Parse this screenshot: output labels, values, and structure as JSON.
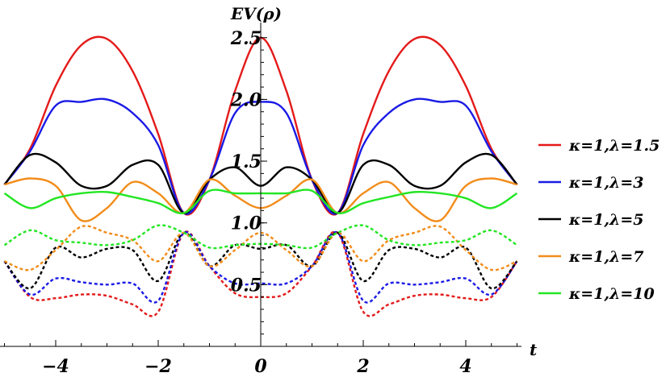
{
  "chart_data": {
    "type": "line",
    "xlabel": "t",
    "ylabel": "EV(ρ)",
    "xlim": [
      -5.2,
      5.2
    ],
    "ylim": [
      0,
      2.55
    ],
    "x_ticks": [
      {
        "value": -4,
        "label": "−4"
      },
      {
        "value": -2,
        "label": "−2"
      },
      {
        "value": 0,
        "label": "0"
      },
      {
        "value": 2,
        "label": "2"
      },
      {
        "value": 4,
        "label": "4"
      }
    ],
    "y_ticks": [
      {
        "value": 0.5,
        "label": "0.5"
      },
      {
        "value": 1.0,
        "label": "1.0"
      },
      {
        "value": 1.5,
        "label": "1.5"
      },
      {
        "value": 2.0,
        "label": "2.0"
      },
      {
        "value": 2.5,
        "label": "2.5"
      }
    ],
    "x": [
      -5.0,
      -4.5,
      -4.0,
      -3.5,
      -3.0,
      -2.5,
      -2.0,
      -1.5,
      -1.0,
      -0.5,
      0.0,
      0.5,
      1.0,
      1.5,
      2.0,
      2.5,
      3.0,
      3.5,
      4.0,
      4.5,
      5.0
    ],
    "series": [
      {
        "name": "κ=1,λ=1.5",
        "color": "#e41a1a",
        "solid": [
          1.31,
          1.6,
          2.11,
          2.44,
          2.49,
          2.23,
          1.72,
          1.08,
          1.35,
          2.07,
          2.5,
          2.07,
          1.35,
          1.08,
          1.72,
          2.23,
          2.49,
          2.44,
          2.11,
          1.6,
          1.31
        ],
        "dashed": [
          0.69,
          0.4,
          0.39,
          0.42,
          0.41,
          0.34,
          0.28,
          0.92,
          0.65,
          0.43,
          0.4,
          0.43,
          0.65,
          0.92,
          0.28,
          0.34,
          0.41,
          0.42,
          0.39,
          0.4,
          0.69
        ]
      },
      {
        "name": "κ=1,λ=3",
        "color": "#1a1ae6",
        "solid": [
          1.31,
          1.58,
          1.95,
          1.98,
          2.0,
          1.89,
          1.63,
          1.08,
          1.35,
          1.89,
          1.98,
          1.89,
          1.35,
          1.08,
          1.63,
          1.89,
          2.0,
          1.98,
          1.95,
          1.58,
          1.31
        ],
        "dashed": [
          0.69,
          0.42,
          0.55,
          0.52,
          0.5,
          0.51,
          0.37,
          0.92,
          0.65,
          0.51,
          0.51,
          0.51,
          0.65,
          0.92,
          0.37,
          0.51,
          0.5,
          0.52,
          0.55,
          0.42,
          0.69
        ]
      },
      {
        "name": "κ=1,λ=5",
        "color": "#000000",
        "solid": [
          1.31,
          1.55,
          1.49,
          1.3,
          1.3,
          1.47,
          1.47,
          1.08,
          1.35,
          1.45,
          1.3,
          1.45,
          1.35,
          1.08,
          1.47,
          1.47,
          1.3,
          1.3,
          1.49,
          1.55,
          1.31
        ],
        "dashed": [
          0.69,
          0.47,
          0.8,
          0.72,
          0.79,
          0.78,
          0.53,
          0.92,
          0.65,
          0.82,
          0.79,
          0.82,
          0.65,
          0.92,
          0.53,
          0.78,
          0.79,
          0.72,
          0.8,
          0.47,
          0.69
        ]
      },
      {
        "name": "κ=1,λ=7",
        "color": "#f28c1a",
        "solid": [
          1.31,
          1.36,
          1.3,
          1.02,
          1.12,
          1.33,
          1.24,
          1.08,
          1.35,
          1.22,
          1.12,
          1.22,
          1.35,
          1.08,
          1.24,
          1.33,
          1.12,
          1.02,
          1.3,
          1.36,
          1.31
        ],
        "dashed": [
          0.69,
          0.62,
          0.78,
          0.97,
          0.92,
          0.86,
          0.69,
          0.92,
          0.65,
          0.78,
          0.92,
          0.78,
          0.65,
          0.92,
          0.69,
          0.86,
          0.92,
          0.97,
          0.78,
          0.62,
          0.69
        ]
      },
      {
        "name": "κ=1,λ=10",
        "color": "#22e622",
        "solid": [
          1.24,
          1.12,
          1.2,
          1.24,
          1.25,
          1.21,
          1.16,
          1.08,
          1.26,
          1.24,
          1.24,
          1.24,
          1.26,
          1.08,
          1.16,
          1.21,
          1.25,
          1.24,
          1.2,
          1.12,
          1.24
        ],
        "dashed": [
          0.82,
          0.94,
          0.86,
          0.84,
          0.82,
          0.86,
          0.98,
          0.92,
          0.8,
          0.82,
          0.83,
          0.82,
          0.8,
          0.92,
          0.98,
          0.86,
          0.82,
          0.84,
          0.86,
          0.94,
          0.82
        ]
      }
    ],
    "legend": "right"
  }
}
